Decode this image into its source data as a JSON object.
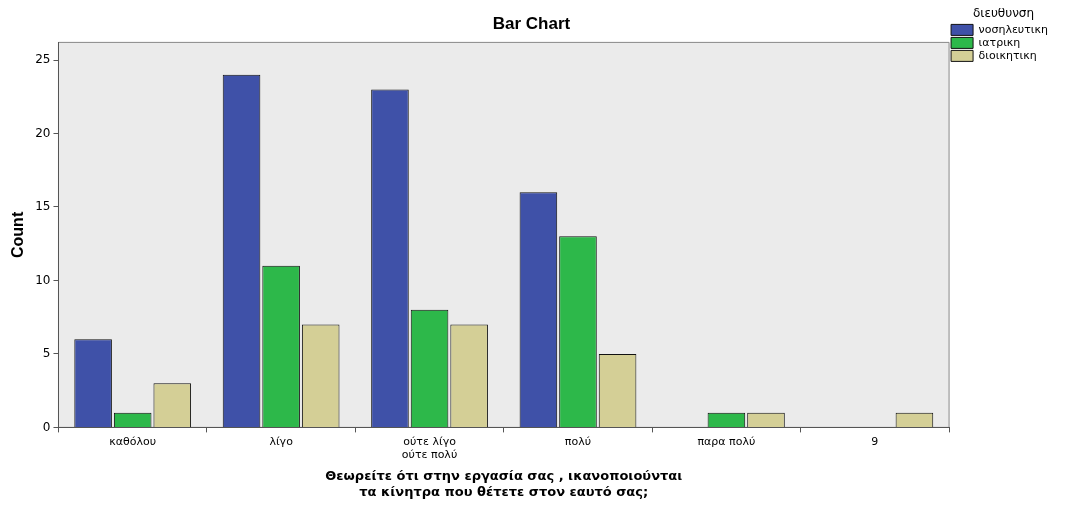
{
  "chart_data": {
    "type": "bar",
    "title": "Bar Chart",
    "xlabel": "Θεωρείτε ότι στην εργασία σας , ικανοποιούνται τα κίνητρα που θέτετε στον εαυτό σας;",
    "ylabel": "Count",
    "legend_title": "διευθυνση",
    "categories": [
      "καθόλου",
      "λίγο",
      "ούτε λίγο ούτε πολύ",
      "πολύ",
      "παρα πολύ",
      "9"
    ],
    "series": [
      {
        "name": "νοσηλευτικη",
        "color": "#3f51a8",
        "values": [
          6,
          24,
          23,
          16,
          null,
          null
        ]
      },
      {
        "name": "ιατρικη",
        "color": "#2db84a",
        "values": [
          1,
          11,
          8,
          13,
          1,
          null
        ]
      },
      {
        "name": "διοικητικη",
        "color": "#d4cf96",
        "values": [
          3,
          7,
          7,
          5,
          1,
          1
        ]
      }
    ],
    "ylim": [
      0,
      26.2
    ],
    "yticks": [
      0,
      5,
      10,
      15,
      20,
      25
    ],
    "grid": false,
    "legend": "top right"
  }
}
